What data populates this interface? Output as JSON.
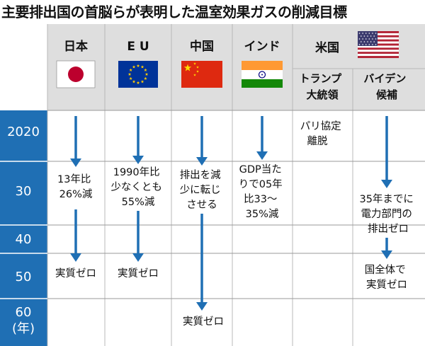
{
  "title": "主要排出国の首脳らが表明した温室効果ガスの削減目標",
  "columns": [
    {
      "id": "japan",
      "name": "日本",
      "flag": "japan-flag"
    },
    {
      "id": "eu",
      "name": "E U",
      "flag": "eu-flag"
    },
    {
      "id": "china",
      "name": "中国",
      "flag": "china-flag"
    },
    {
      "id": "india",
      "name": "インド",
      "flag": "india-flag"
    },
    {
      "id": "us",
      "name": "米国",
      "flag": "us-flag",
      "sub": [
        {
          "id": "trump",
          "lines": [
            "トランプ",
            "大統領"
          ]
        },
        {
          "id": "biden",
          "lines": [
            "バイデン",
            "候補"
          ]
        }
      ]
    }
  ],
  "years": [
    {
      "id": "2020",
      "lines": [
        "2020"
      ]
    },
    {
      "id": "30",
      "lines": [
        "30"
      ]
    },
    {
      "id": "40",
      "lines": [
        "40"
      ]
    },
    {
      "id": "50",
      "lines": [
        "50"
      ]
    },
    {
      "id": "60",
      "lines": [
        "60",
        "(年)"
      ]
    }
  ],
  "cells": {
    "japan_mid": [
      "13年比",
      "26%減"
    ],
    "japan_end": [
      "実質ゼロ"
    ],
    "eu_mid": [
      "1990年比",
      "少なくとも",
      "55%減"
    ],
    "eu_end": [
      "実質ゼロ"
    ],
    "china_mid": [
      "排出を減",
      "少に転じ",
      "させる"
    ],
    "china_end": [
      "実質ゼロ"
    ],
    "india_mid": [
      "GDP当た",
      "りで05年",
      "比33～",
      "35%減"
    ],
    "trump_2020": [
      "パリ協定",
      "離脱"
    ],
    "biden_mid": [
      "35年までに",
      "電力部門の",
      "排出ゼロ"
    ],
    "biden_end": [
      "国全体で",
      "実質ゼロ"
    ]
  },
  "colors": {
    "accent_blue": "#1f6fb4",
    "header_gray": "#dedede",
    "japan_red": "#bc002d",
    "eu_blue": "#003399",
    "eu_star": "#ffcc00",
    "china_red": "#de2910",
    "china_star": "#ffde00",
    "india_saffron": "#ff9933",
    "india_green": "#138808",
    "india_chakra": "#000080",
    "us_red": "#b22234",
    "us_blue": "#3c3b6e"
  }
}
